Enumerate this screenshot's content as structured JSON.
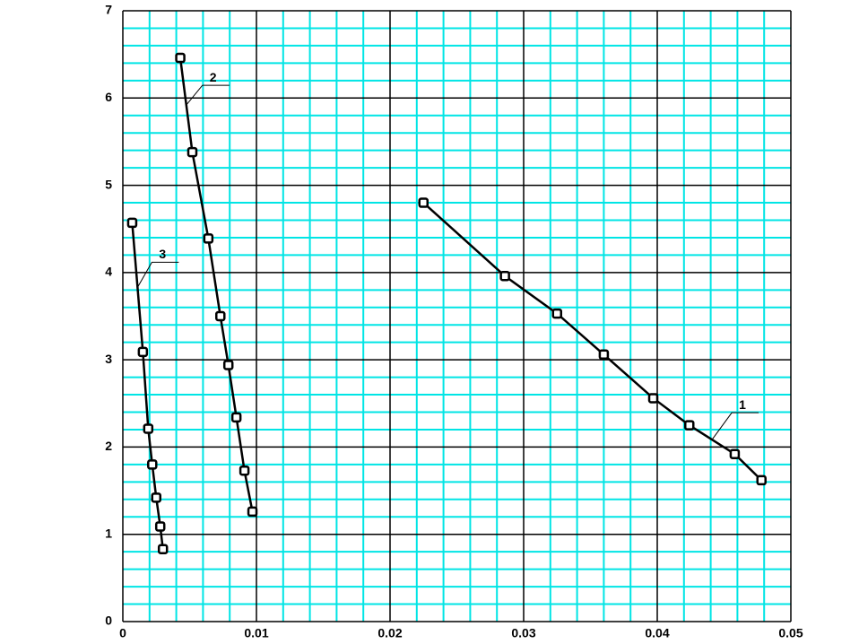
{
  "chart_data": {
    "type": "line",
    "xlim": [
      0,
      0.05
    ],
    "xticks": [
      0,
      0.01,
      0.02,
      0.03,
      0.04,
      0.05
    ],
    "ylim": [
      0,
      7
    ],
    "yticks": [
      0,
      1,
      2,
      3,
      4,
      5,
      6,
      7
    ],
    "grid": true,
    "minor_divisions": 5,
    "grid_color": "#00e5e5",
    "major_grid_color": "#000000",
    "series": [
      {
        "name": "1",
        "color": "#000000",
        "x": [
          0.0225,
          0.0286,
          0.0325,
          0.036,
          0.0397,
          0.0424,
          0.0458,
          0.0478
        ],
        "values": [
          4.8,
          3.96,
          3.53,
          3.06,
          2.56,
          2.25,
          1.92,
          1.62
        ]
      },
      {
        "name": "2",
        "color": "#000000",
        "x": [
          0.0043,
          0.0052,
          0.0064,
          0.0073,
          0.0079,
          0.0085,
          0.0091,
          0.0097
        ],
        "values": [
          6.46,
          5.38,
          4.39,
          3.5,
          2.94,
          2.34,
          1.73,
          1.26
        ]
      },
      {
        "name": "3",
        "color": "#000000",
        "x": [
          0.0007,
          0.0015,
          0.0019,
          0.0022,
          0.0025,
          0.0028,
          0.003
        ],
        "values": [
          4.57,
          3.09,
          2.21,
          1.8,
          1.42,
          1.09,
          0.83
        ]
      }
    ]
  }
}
